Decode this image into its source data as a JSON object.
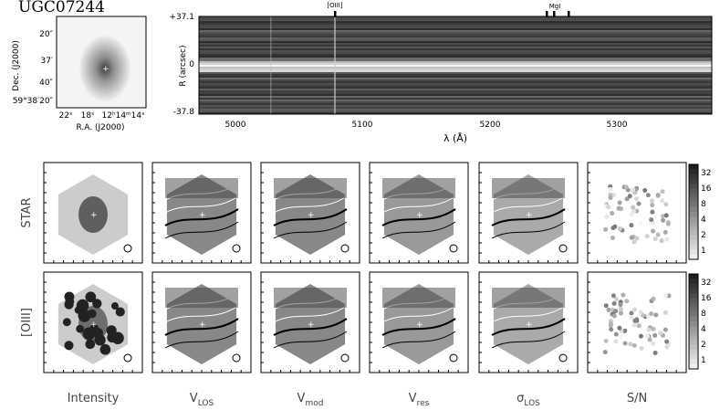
{
  "header": {
    "title": "UGC07244"
  },
  "image": {
    "ylabel": "Dec. (J2000)",
    "xlabel": "R.A. (J2000)",
    "yticks": [
      "20″",
      "37′",
      "40″",
      "59°38′20″"
    ],
    "xticks": [
      "22ˢ",
      "18ˢ",
      "12ʰ14ᵐ14ˢ"
    ]
  },
  "spectrum": {
    "yticks": [
      "+37.1",
      "0",
      "-37.8"
    ],
    "ylabel": "R (arcsec)",
    "xticks": [
      "5000",
      "5100",
      "5200",
      "5300"
    ],
    "xlabel": "λ (Å)",
    "lines": [
      "[OIII]",
      "MgI"
    ]
  },
  "rows": [
    "STAR",
    "[OIII]"
  ],
  "columns": [
    {
      "label": "Intensity"
    },
    {
      "label": "V",
      "sub": "LOS"
    },
    {
      "label": "V",
      "sub": "mod"
    },
    {
      "label": "V",
      "sub": "res"
    },
    {
      "label": "σ",
      "sub": "LOS"
    },
    {
      "label": "S/N"
    }
  ],
  "colorbar": {
    "ticks": [
      "32",
      "16",
      "8",
      "4",
      "2",
      "1"
    ]
  }
}
